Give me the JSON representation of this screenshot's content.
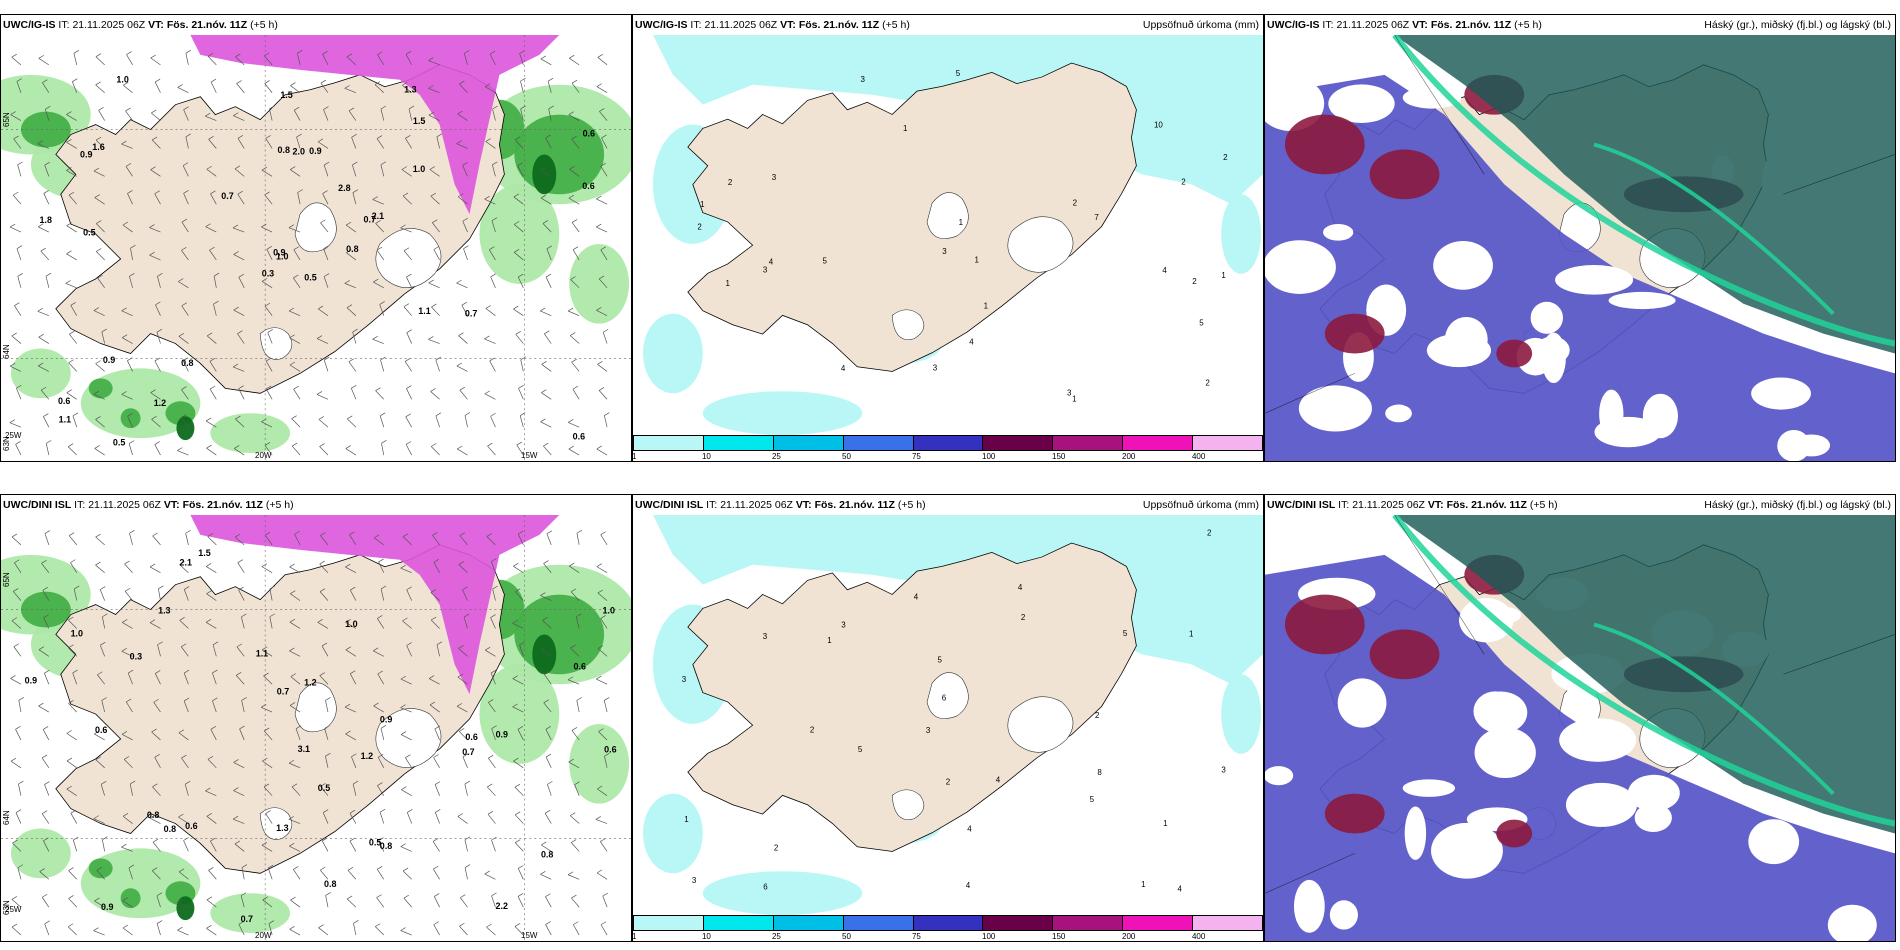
{
  "panels": [
    {
      "id": "ig-wind-precip",
      "model": "UWC/IG-IS",
      "it_label": "IT:",
      "it": "21.11.2025 06Z",
      "vt_label": "VT:",
      "vt": "Fös. 21.nóv. 11Z",
      "lead": "(+5 h)",
      "right_title": "",
      "lat_labels": [
        "65N",
        "64N",
        "63N"
      ],
      "lon_labels": [
        "25W",
        "20W",
        "15W"
      ],
      "values": [
        "0.5",
        "0.9",
        "1.0",
        "0.6",
        "0.7",
        "0.8",
        "1.3",
        "0.9",
        "1.5",
        "0.8",
        "1.0",
        "0.6",
        "0.5",
        "0.6",
        "0.3",
        "1.0",
        "0.5",
        "0.8",
        "2.8",
        "0.9",
        "0.7",
        "1.1",
        "1.2",
        "2.0",
        "2.1",
        "0.7",
        "1.6",
        "1.5",
        "1.8",
        "1.1",
        "0.6",
        "0.9"
      ]
    },
    {
      "id": "ig-accum",
      "model": "UWC/IG-IS",
      "it_label": "IT:",
      "it": "21.11.2025 06Z",
      "vt_label": "VT:",
      "vt": "Fös. 21.nóv. 11Z",
      "lead": "(+5 h)",
      "right_title": "Uppsöfnuð úrkoma (mm)",
      "values": [
        "5",
        "4",
        "10",
        "2",
        "1",
        "3",
        "2",
        "4",
        "1",
        "3",
        "5",
        "2",
        "7",
        "1",
        "4",
        "2",
        "1",
        "3",
        "2",
        "1",
        "3",
        "1",
        "2",
        "5",
        "3",
        "1",
        "2",
        "4",
        "1",
        "3"
      ]
    },
    {
      "id": "ig-cloud",
      "model": "UWC/IG-IS",
      "it_label": "IT:",
      "it": "21.11.2025 06Z",
      "vt_label": "VT:",
      "vt": "Fös. 21.nóv. 11Z",
      "lead": "(+5 h)",
      "right_title": "Háský (gr.), miðský (fj.bl.) og lágský (bl.)"
    },
    {
      "id": "dini-wind-precip",
      "model": "UWC/DINI ISL",
      "it_label": "IT:",
      "it": "21.11.2025 06Z",
      "vt_label": "VT:",
      "vt": "Fös. 21.nóv. 11Z",
      "lead": "(+5 h)",
      "right_title": "",
      "lat_labels": [
        "65N",
        "64N",
        "63N"
      ],
      "lon_labels": [
        "25W",
        "20W",
        "15W"
      ],
      "values": [
        "0.3",
        "1.0",
        "0.7",
        "2.1",
        "0.6",
        "1.0",
        "0.9",
        "1.2",
        "0.8",
        "0.7",
        "1.5",
        "0.6",
        "2.2",
        "0.9",
        "0.5",
        "0.8",
        "1.1",
        "3.1",
        "0.8",
        "1.3",
        "0.6",
        "0.8",
        "1.3",
        "0.7",
        "0.6",
        "0.9",
        "1.0",
        "0.8",
        "1.2",
        "0.6",
        "0.9",
        "0.5"
      ]
    },
    {
      "id": "dini-accum",
      "model": "UWC/DINI ISL",
      "it_label": "IT:",
      "it": "21.11.2025 06Z",
      "vt_label": "VT:",
      "vt": "Fös. 21.nóv. 11Z",
      "lead": "(+5 h)",
      "right_title": "Uppsöfnuð úrkoma (mm)",
      "values": [
        "5",
        "4",
        "8",
        "4",
        "2",
        "3",
        "5",
        "6",
        "1",
        "2",
        "4",
        "3",
        "4",
        "2",
        "1",
        "5",
        "3",
        "2",
        "3",
        "1",
        "4",
        "2",
        "3",
        "6",
        "1",
        "3",
        "2",
        "4",
        "1",
        "5"
      ]
    },
    {
      "id": "dini-cloud",
      "model": "UWC/DINI ISL",
      "it_label": "IT:",
      "it": "21.11.2025 06Z",
      "vt_label": "VT:",
      "vt": "Fös. 21.nóv. 11Z",
      "lead": "(+5 h)",
      "right_title": "Háský (gr.), miðský (fj.bl.) og lágský (bl.)"
    }
  ],
  "legend": {
    "labels": [
      "1",
      "10",
      "25",
      "50",
      "75",
      "100",
      "150",
      "200",
      "400"
    ],
    "colors": [
      "#b9f7f7",
      "#00e8ee",
      "#00bfe6",
      "#3a70e8",
      "#3430c0",
      "#6a0048",
      "#a8127f",
      "#ee12b8",
      "#f4b2ee"
    ]
  },
  "colors": {
    "land": "#f0e3d4",
    "precip_light": "#aee8a8",
    "precip_mid": "#45b048",
    "precip_dark": "#0d6a1c",
    "snow_magenta": "#dd55dd",
    "accum_cyan": "#b9f7f7",
    "cloud_high": "#1b5a56",
    "cloud_mid": "#5655c8",
    "cloud_low": "#8c1a3e",
    "cloud_green": "#20d49a"
  }
}
